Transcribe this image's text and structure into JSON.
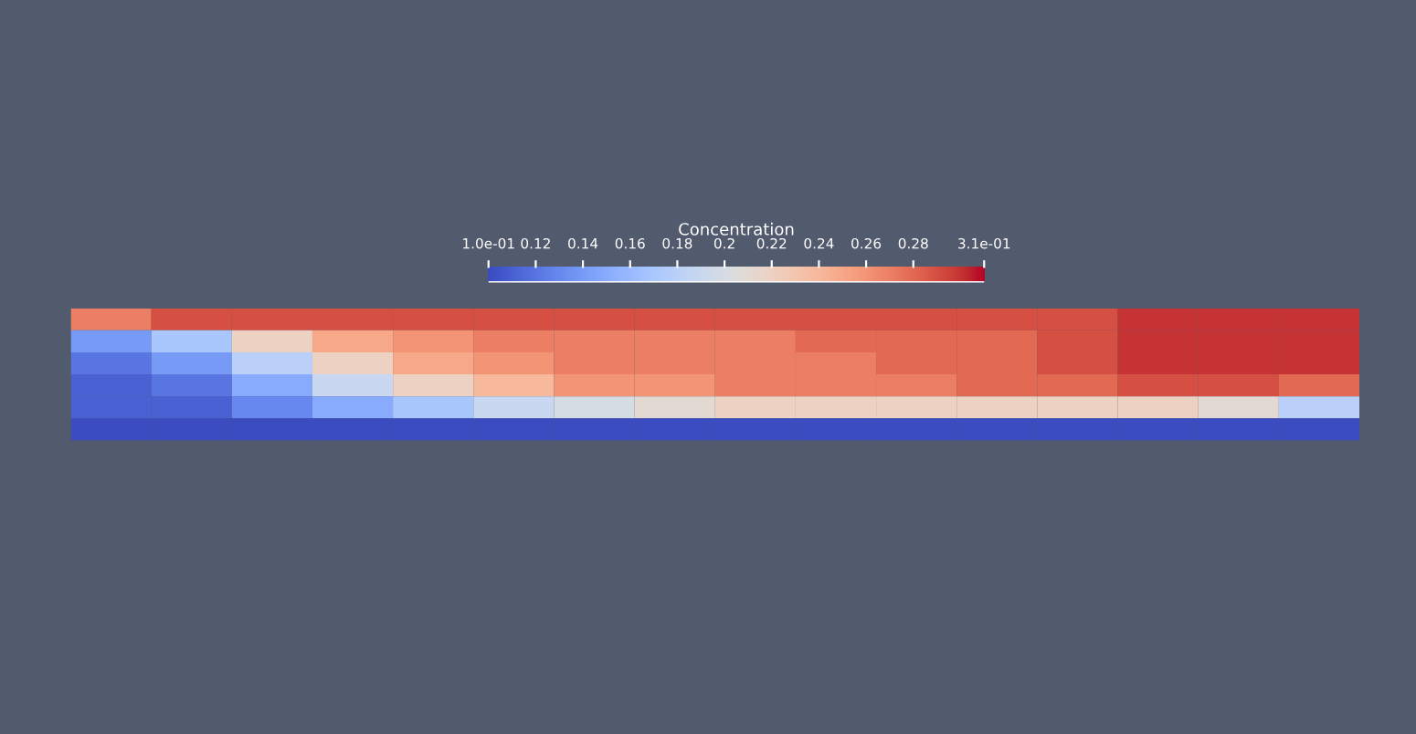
{
  "chart_data": {
    "type": "heatmap",
    "clabel": "Concentration",
    "categories": [
      null,
      null,
      null,
      null,
      null,
      null,
      null,
      null,
      null,
      null,
      null,
      null,
      null,
      null,
      null,
      null
    ],
    "y_categories": [
      null,
      null,
      null,
      null,
      null,
      null
    ],
    "cells": [
      [
        0.27,
        0.29,
        0.29,
        0.29,
        0.29,
        0.29,
        0.29,
        0.29,
        0.29,
        0.29,
        0.29,
        0.29,
        0.29,
        0.3,
        0.3,
        0.3
      ],
      [
        0.14,
        0.17,
        0.22,
        0.25,
        0.26,
        0.27,
        0.27,
        0.27,
        0.27,
        0.28,
        0.28,
        0.28,
        0.29,
        0.3,
        0.3,
        0.3
      ],
      [
        0.12,
        0.14,
        0.18,
        0.22,
        0.25,
        0.26,
        0.27,
        0.27,
        0.27,
        0.27,
        0.28,
        0.28,
        0.29,
        0.3,
        0.3,
        0.3
      ],
      [
        0.11,
        0.12,
        0.15,
        0.19,
        0.22,
        0.24,
        0.26,
        0.26,
        0.27,
        0.27,
        0.27,
        0.28,
        0.28,
        0.29,
        0.29,
        0.28
      ],
      [
        0.11,
        0.11,
        0.13,
        0.15,
        0.17,
        0.19,
        0.2,
        0.21,
        0.22,
        0.22,
        0.22,
        0.22,
        0.22,
        0.22,
        0.21,
        0.18
      ],
      [
        0.1,
        0.1,
        0.1,
        0.1,
        0.1,
        0.1,
        0.1,
        0.1,
        0.1,
        0.1,
        0.1,
        0.1,
        0.1,
        0.1,
        0.1,
        0.1
      ]
    ],
    "clim": [
      0.1,
      0.31
    ],
    "cticks": [
      {
        "value": 0.1,
        "label": "1.0e-01"
      },
      0.12,
      0.14,
      0.16,
      0.18,
      0.2,
      0.22,
      0.24,
      0.26,
      0.28,
      {
        "value": 0.31,
        "label": "3.1e-01"
      }
    ]
  }
}
